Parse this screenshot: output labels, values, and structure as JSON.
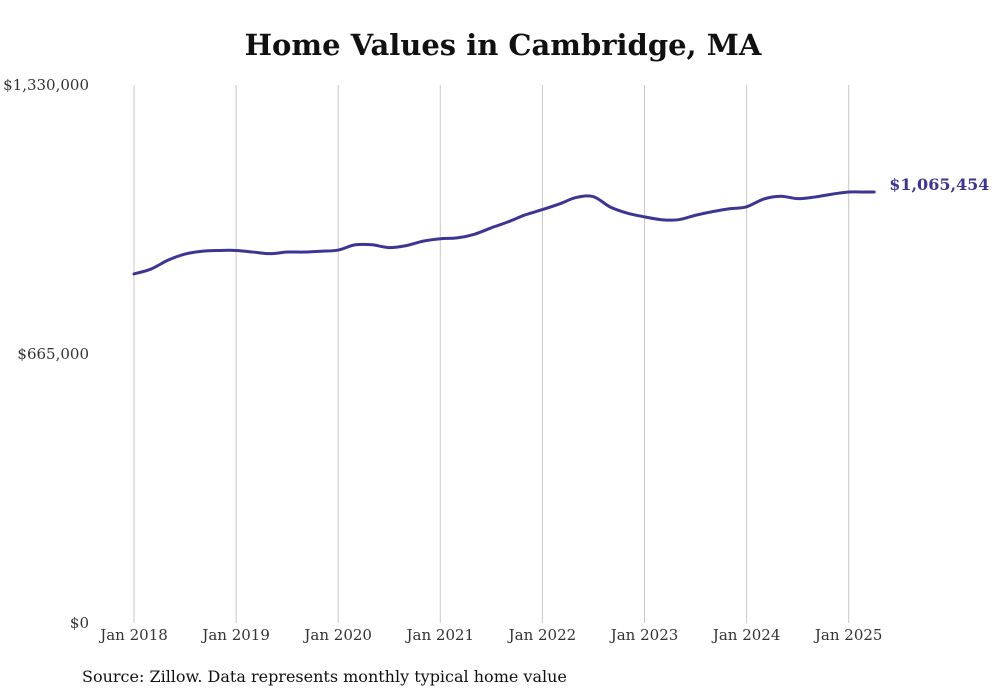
{
  "chart_data": {
    "type": "line",
    "title": "Home Values in Cambridge, MA",
    "source": "Source: Zillow. Data represents monthly typical home value",
    "xlabel": "",
    "ylabel": "",
    "ylim": [
      0,
      1330000
    ],
    "yticks": [
      0,
      665000,
      1330000
    ],
    "ytick_labels": [
      "$0",
      "$665,000",
      "$1,330,000"
    ],
    "xlim": [
      "2018-01",
      "2025-04"
    ],
    "xticks": [
      "2018-01",
      "2019-01",
      "2020-01",
      "2021-01",
      "2022-01",
      "2023-01",
      "2024-01",
      "2025-01"
    ],
    "xtick_labels": [
      "Jan 2018",
      "Jan 2019",
      "Jan 2020",
      "Jan 2021",
      "Jan 2022",
      "Jan 2023",
      "Jan 2024",
      "Jan 2025"
    ],
    "grid": "vertical",
    "series": [
      {
        "color": "#3d3594",
        "end_label": "$1,065,454",
        "points": [
          [
            "2018-01",
            863000
          ],
          [
            "2018-03",
            875000
          ],
          [
            "2018-05",
            897000
          ],
          [
            "2018-07",
            912000
          ],
          [
            "2018-09",
            919000
          ],
          [
            "2018-11",
            921000
          ],
          [
            "2019-01",
            921000
          ],
          [
            "2019-03",
            917000
          ],
          [
            "2019-05",
            913000
          ],
          [
            "2019-07",
            917000
          ],
          [
            "2019-09",
            917000
          ],
          [
            "2019-11",
            919000
          ],
          [
            "2020-01",
            922000
          ],
          [
            "2020-03",
            935000
          ],
          [
            "2020-05",
            935000
          ],
          [
            "2020-07",
            928000
          ],
          [
            "2020-09",
            933000
          ],
          [
            "2020-11",
            944000
          ],
          [
            "2021-01",
            950000
          ],
          [
            "2021-03",
            952000
          ],
          [
            "2021-05",
            961000
          ],
          [
            "2021-07",
            977000
          ],
          [
            "2021-09",
            992000
          ],
          [
            "2021-11",
            1009000
          ],
          [
            "2022-01",
            1022000
          ],
          [
            "2022-03",
            1036000
          ],
          [
            "2022-05",
            1052000
          ],
          [
            "2022-07",
            1054000
          ],
          [
            "2022-09",
            1028000
          ],
          [
            "2022-11",
            1013000
          ],
          [
            "2023-01",
            1004000
          ],
          [
            "2023-03",
            997000
          ],
          [
            "2023-05",
            997000
          ],
          [
            "2023-07",
            1008000
          ],
          [
            "2023-09",
            1017000
          ],
          [
            "2023-11",
            1024000
          ],
          [
            "2024-01",
            1029000
          ],
          [
            "2024-03",
            1048000
          ],
          [
            "2024-05",
            1055000
          ],
          [
            "2024-07",
            1049000
          ],
          [
            "2024-09",
            1053000
          ],
          [
            "2024-11",
            1060000
          ],
          [
            "2025-01",
            1065454
          ],
          [
            "2025-03",
            1065454
          ],
          [
            "2025-04",
            1065454
          ]
        ]
      }
    ]
  }
}
